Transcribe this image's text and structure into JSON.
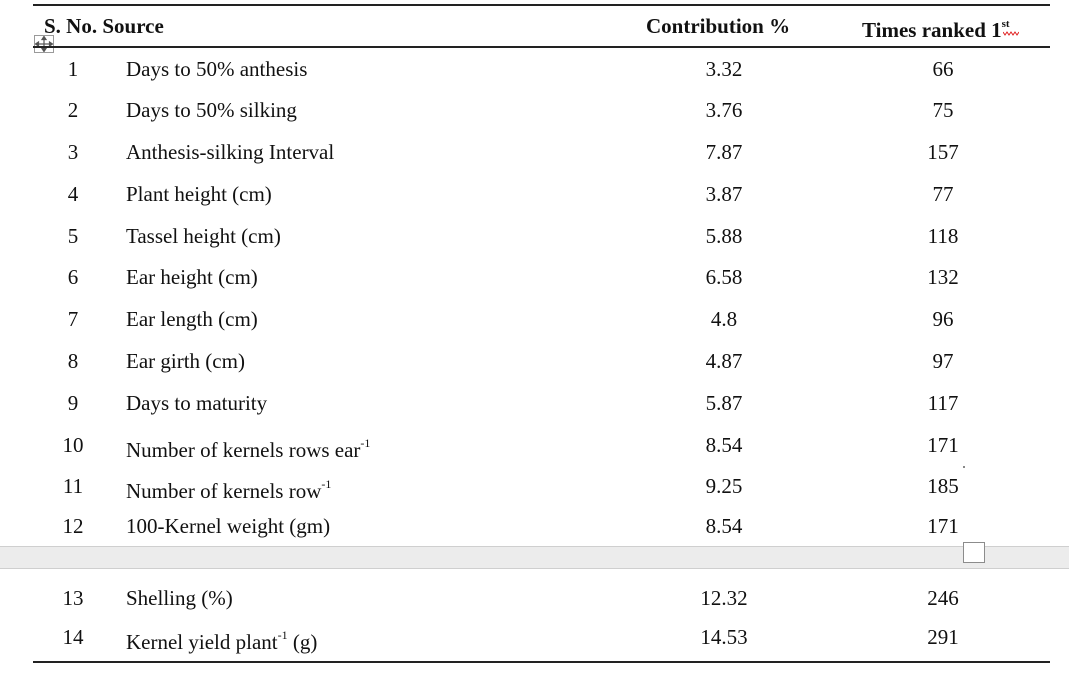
{
  "table": {
    "headers": {
      "sno_source": "S. No. Source",
      "contribution": "Contribution %",
      "times_ranked": "Times ranked 1",
      "times_ranked_sup": "st"
    },
    "rows": [
      {
        "sno": "1",
        "source": "Days to 50% anthesis",
        "source_sup": "",
        "source_tail": "",
        "contribution": "3.32",
        "times": "66"
      },
      {
        "sno": "2",
        "source": "Days to 50% silking",
        "source_sup": "",
        "source_tail": "",
        "contribution": "3.76",
        "times": "75"
      },
      {
        "sno": "3",
        "source": "Anthesis-silking Interval",
        "source_sup": "",
        "source_tail": "",
        "contribution": "7.87",
        "times": "157"
      },
      {
        "sno": "4",
        "source": "Plant height (cm)",
        "source_sup": "",
        "source_tail": "",
        "contribution": "3.87",
        "times": "77"
      },
      {
        "sno": "5",
        "source": "Tassel height (cm)",
        "source_sup": "",
        "source_tail": "",
        "contribution": "5.88",
        "times": "118"
      },
      {
        "sno": "6",
        "source": "Ear height (cm)",
        "source_sup": "",
        "source_tail": "",
        "contribution": "6.58",
        "times": "132"
      },
      {
        "sno": "7",
        "source": "Ear length (cm)",
        "source_sup": "",
        "source_tail": "",
        "contribution": "4.8",
        "times": "96"
      },
      {
        "sno": "8",
        "source": "Ear girth (cm)",
        "source_sup": "",
        "source_tail": "",
        "contribution": "4.87",
        "times": "97"
      },
      {
        "sno": "9",
        "source": "Days to maturity",
        "source_sup": "",
        "source_tail": "",
        "contribution": "5.87",
        "times": "117"
      },
      {
        "sno": "10",
        "source": "Number of kernels rows ear",
        "source_sup": "-1",
        "source_tail": "",
        "contribution": "8.54",
        "times": "171"
      },
      {
        "sno": "11",
        "source": "Number of kernels row",
        "source_sup": "-1",
        "source_tail": "",
        "contribution": "9.25",
        "times": "185"
      },
      {
        "sno": "12",
        "source": "100-Kernel weight (gm)",
        "source_sup": "",
        "source_tail": "",
        "contribution": "8.54",
        "times": "171"
      },
      {
        "sno": "13",
        "source": "Shelling (%)",
        "source_sup": "",
        "source_tail": "",
        "contribution": "12.32",
        "times": "246"
      },
      {
        "sno": "14",
        "source": "Kernel yield plant",
        "source_sup": "-1",
        "source_tail": " (g)",
        "contribution": "14.53",
        "times": "291"
      }
    ]
  },
  "icons": {
    "move_handle": "move-arrows-icon",
    "resize_handle": "resize-handle-icon"
  },
  "colors": {
    "rule": "#222222",
    "gap_band": "#ececec"
  }
}
